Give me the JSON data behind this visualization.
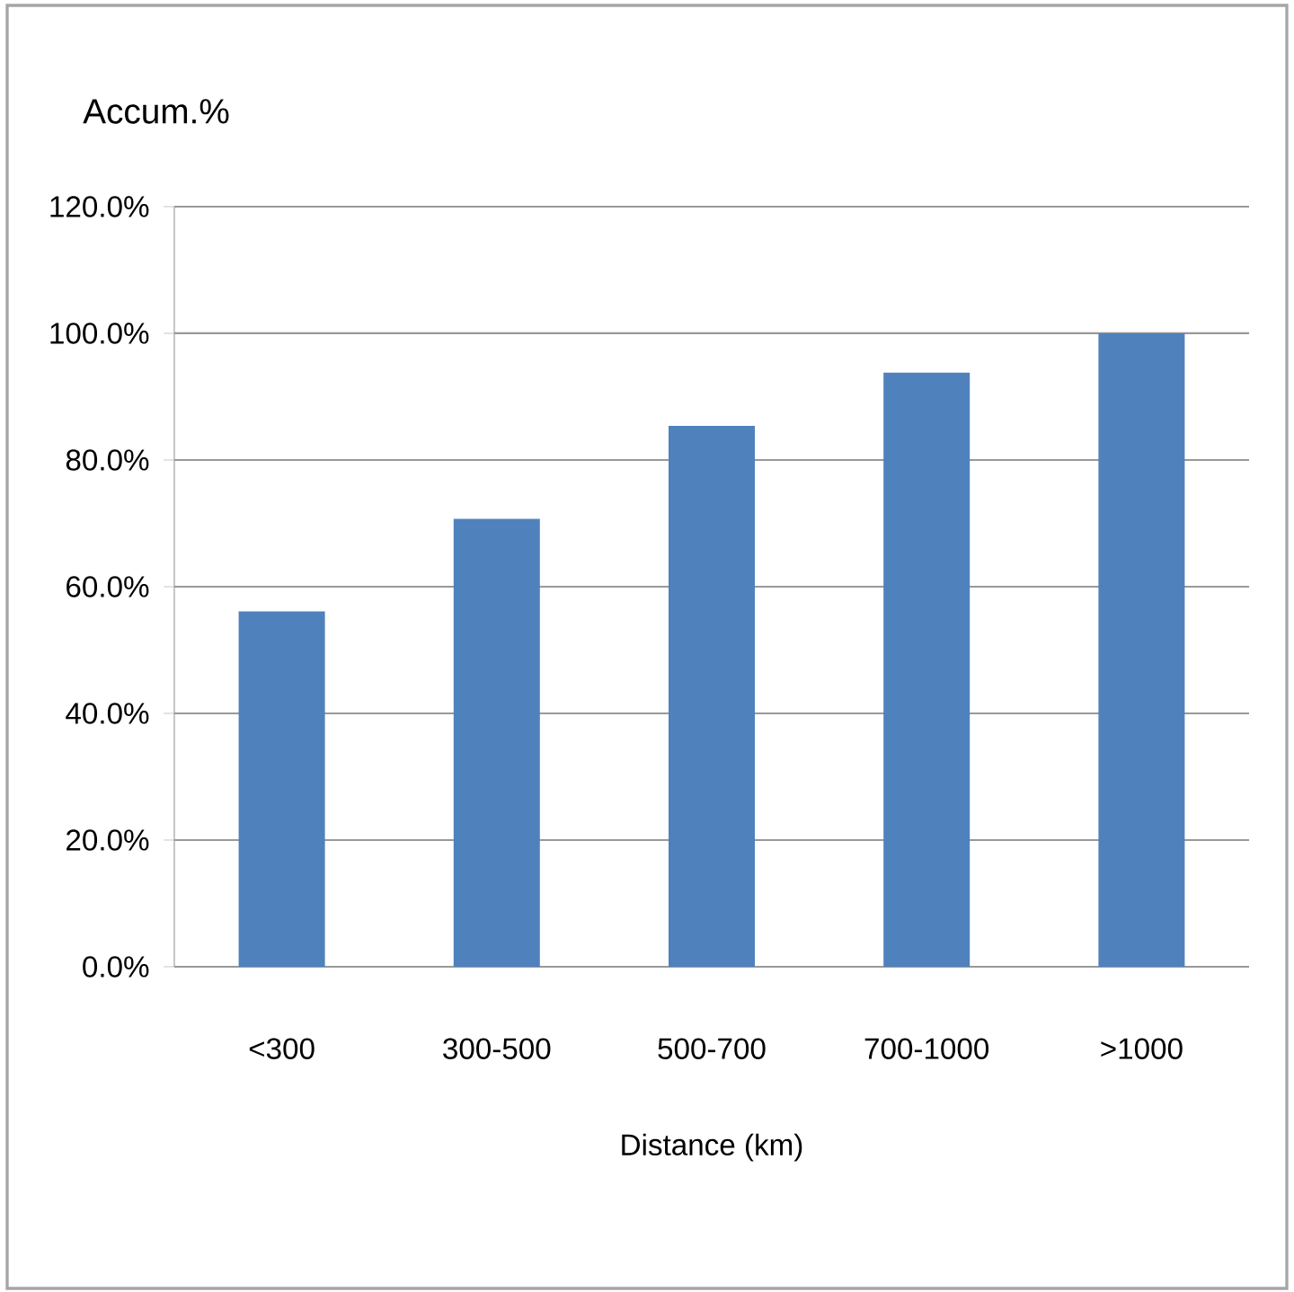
{
  "chart_data": {
    "type": "bar",
    "categories": [
      "<300",
      "300-500",
      "500-700",
      "700-1000",
      ">1000"
    ],
    "values": [
      56.1,
      70.7,
      85.4,
      93.8,
      100
    ],
    "color": "#4f81bd",
    "xlabel": "Distance (km)",
    "ylabel": "Accum.%",
    "ylim": [
      0,
      120
    ],
    "yticks": [
      {
        "value": 0,
        "label": "0.0%"
      },
      {
        "value": 20,
        "label": "20.0%"
      },
      {
        "value": 40,
        "label": "40.0%"
      },
      {
        "value": 60,
        "label": "60.0%"
      },
      {
        "value": 80,
        "label": "80.0%"
      },
      {
        "value": 100,
        "label": "100.0%"
      },
      {
        "value": 120,
        "label": "120.0%"
      }
    ],
    "grid": "y"
  }
}
